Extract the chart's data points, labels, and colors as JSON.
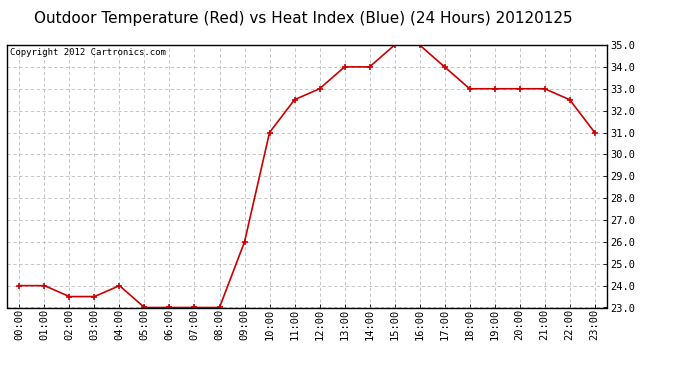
{
  "title": "Outdoor Temperature (Red) vs Heat Index (Blue) (24 Hours) 20120125",
  "copyright_text": "Copyright 2012 Cartronics.com",
  "x_labels": [
    "00:00",
    "01:00",
    "02:00",
    "03:00",
    "04:00",
    "05:00",
    "06:00",
    "07:00",
    "08:00",
    "09:00",
    "10:00",
    "11:00",
    "12:00",
    "13:00",
    "14:00",
    "15:00",
    "16:00",
    "17:00",
    "18:00",
    "19:00",
    "20:00",
    "21:00",
    "22:00",
    "23:00"
  ],
  "red_values": [
    24.0,
    24.0,
    23.5,
    23.5,
    24.0,
    23.0,
    23.0,
    23.0,
    23.0,
    26.0,
    31.0,
    32.5,
    33.0,
    34.0,
    34.0,
    35.0,
    35.0,
    34.0,
    33.0,
    33.0,
    33.0,
    33.0,
    32.5,
    31.0
  ],
  "ylim_min": 23.0,
  "ylim_max": 35.0,
  "yticks": [
    23.0,
    24.0,
    25.0,
    26.0,
    27.0,
    28.0,
    29.0,
    30.0,
    31.0,
    32.0,
    33.0,
    34.0,
    35.0
  ],
  "line_color_red": "#cc0000",
  "marker": "+",
  "marker_size": 5,
  "marker_linewidth": 1.2,
  "line_width": 1.2,
  "background_color": "#ffffff",
  "grid_color": "#bbbbbb",
  "title_fontsize": 11,
  "tick_fontsize": 7.5,
  "copyright_fontsize": 6.5
}
